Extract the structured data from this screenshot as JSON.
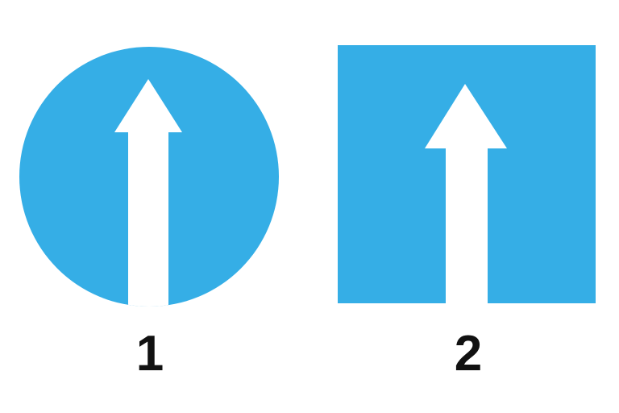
{
  "colors": {
    "sign_fill": "#35AEE6",
    "arrow": "#FFFFFF",
    "number_text": "#111111"
  },
  "signs": [
    {
      "shape": "circle",
      "icon": "straight-ahead-arrow-icon",
      "label": "1"
    },
    {
      "shape": "square",
      "icon": "straight-ahead-arrow-icon",
      "label": "2"
    }
  ]
}
